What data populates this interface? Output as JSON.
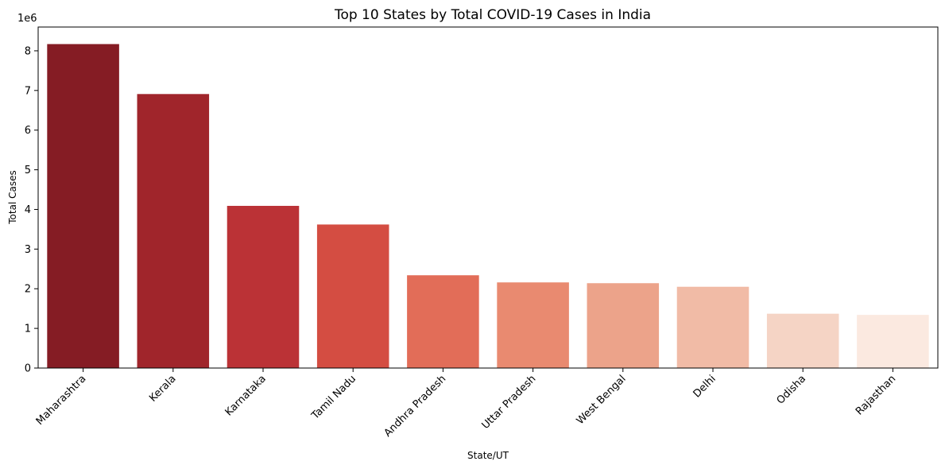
{
  "chart_data": {
    "type": "bar",
    "title": "Top 10 States by Total COVID-19 Cases in India",
    "xlabel": "State/UT",
    "ylabel": "Total Cases",
    "y_offset_label": "1e6",
    "ylim": [
      0,
      8.6
    ],
    "yticks": [
      0,
      1,
      2,
      3,
      4,
      5,
      6,
      7,
      8
    ],
    "grid": false,
    "categories": [
      "Maharashtra",
      "Kerala",
      "Karnataka",
      "Tamil Nadu",
      "Andhra Pradesh",
      "Uttar Pradesh",
      "West Bengal",
      "Delhi",
      "Odisha",
      "Rajasthan"
    ],
    "values": [
      8.17,
      6.91,
      4.09,
      3.62,
      2.34,
      2.16,
      2.14,
      2.05,
      1.37,
      1.34
    ],
    "colors": [
      "#851c24",
      "#a0252b",
      "#bb3236",
      "#d44d42",
      "#e26d58",
      "#e98a70",
      "#eca38a",
      "#f1bba6",
      "#f5d4c5",
      "#fbe9e0"
    ]
  }
}
